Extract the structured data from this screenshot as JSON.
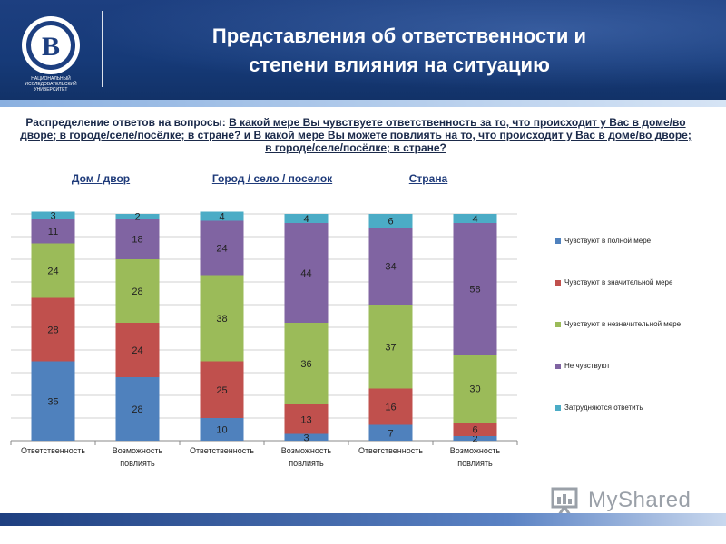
{
  "header": {
    "title_line1": "Представления об ответственности и",
    "title_line2": "степени влияния на ситуацию",
    "logo_caption": "НАЦИОНАЛЬНЫЙ ИССЛЕДОВАТЕЛЬСКИЙ УНИВЕРСИТЕТ"
  },
  "question": {
    "prefix": "Распределение ответов на вопросы: ",
    "underlined": "В какой мере Вы чувствуете ответственность за то, что происходит у Вас в доме/во дворе; в городе/селе/посёлке; в стране? и В какой мере Вы можете повлиять на то, что происходит у Вас в доме/во дворе; в городе/селе/посёлке; в стране?"
  },
  "groups": [
    "Дом / двор",
    "Город / село / поселок",
    "Страна"
  ],
  "watermark": "MyShared",
  "chart_data": {
    "type": "bar",
    "stacked": true,
    "categories": [
      "Ответственность",
      "Возможность повлиять",
      "Ответственность",
      "Возможность повлиять",
      "Ответственность",
      "Возможность повлиять"
    ],
    "category_lines": [
      [
        "Ответственность"
      ],
      [
        "Возможность",
        "повлиять"
      ],
      [
        "Ответственность"
      ],
      [
        "Возможность",
        "повлиять"
      ],
      [
        "Ответственность"
      ],
      [
        "Возможность",
        "повлиять"
      ]
    ],
    "series": [
      {
        "name": "Чувствуют  в полной мере",
        "color": "#4f81bd",
        "values": [
          35,
          28,
          10,
          3,
          7,
          2
        ]
      },
      {
        "name": "Чувствуют  в значительной мере",
        "color": "#c0504d",
        "values": [
          28,
          24,
          25,
          13,
          16,
          6
        ]
      },
      {
        "name": "Чувствуют  в незначительной мере",
        "color": "#9bbb59",
        "values": [
          24,
          28,
          38,
          36,
          37,
          30
        ]
      },
      {
        "name": "Не чувствуют",
        "color": "#8064a2",
        "values": [
          11,
          18,
          24,
          44,
          34,
          58
        ]
      },
      {
        "name": "Затрудняются  ответить",
        "color": "#4bacc6",
        "values": [
          3,
          2,
          4,
          4,
          6,
          4
        ]
      }
    ],
    "ylim": [
      0,
      100
    ],
    "grid": true,
    "legend_position": "right"
  }
}
